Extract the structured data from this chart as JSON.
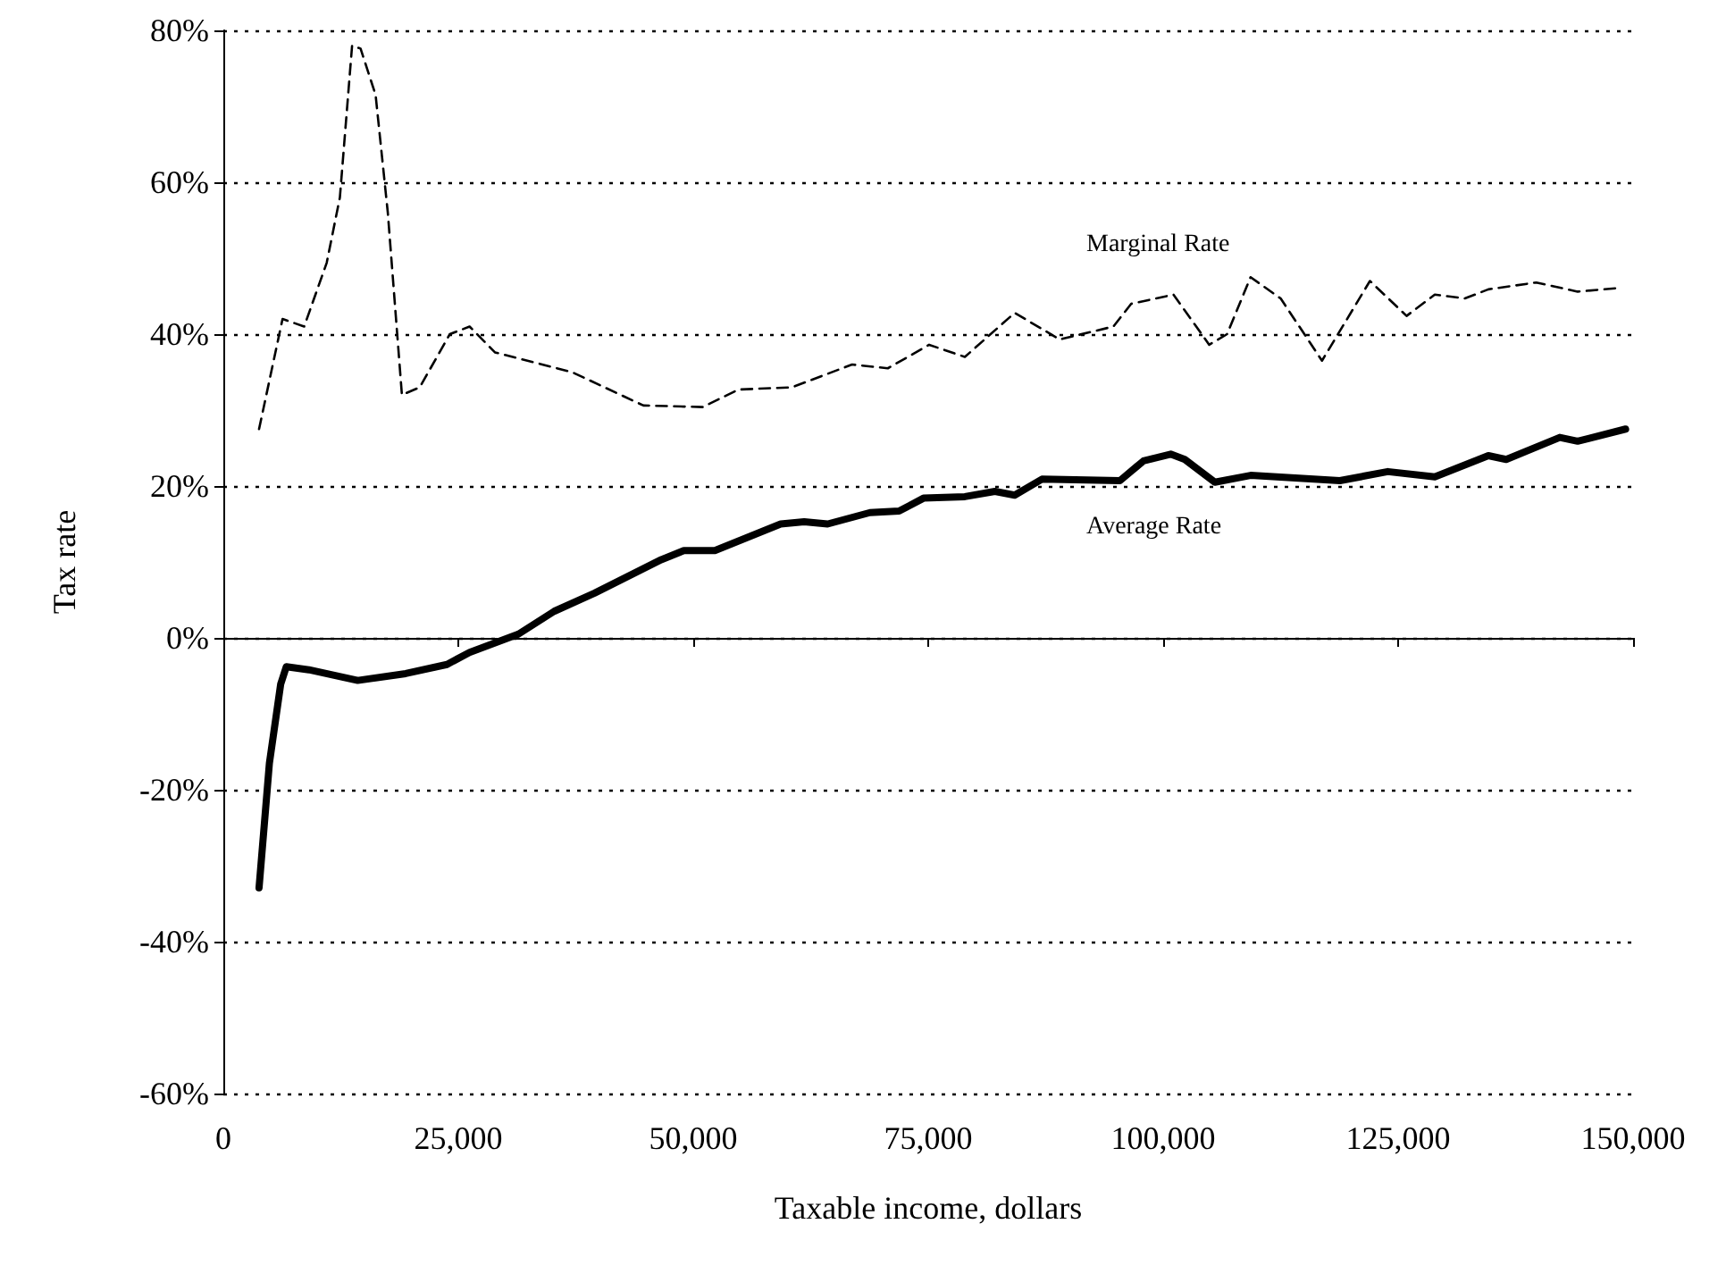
{
  "chart_data": {
    "type": "line",
    "xlabel": "Taxable income, dollars",
    "ylabel": "Tax rate",
    "xlim": [
      0,
      150000
    ],
    "xticks": [
      0,
      {
        "value": 25000,
        "label": "25,000"
      },
      {
        "value": 50000,
        "label": "50,000"
      },
      {
        "value": 75000,
        "label": "75,000"
      },
      {
        "value": 100000,
        "label": "100,000"
      },
      {
        "value": 125000,
        "label": "125,000"
      },
      {
        "value": 150000,
        "label": "150,000"
      }
    ],
    "ylim": [
      -60,
      80
    ],
    "yticks": [
      {
        "value": -60,
        "label": "-60%"
      },
      {
        "value": -40,
        "label": "-40%"
      },
      {
        "value": -20,
        "label": "-20%"
      },
      {
        "value": 0,
        "label": "0%"
      },
      {
        "value": 20,
        "label": "20%"
      },
      {
        "value": 40,
        "label": "40%"
      },
      {
        "value": 60,
        "label": "60%"
      },
      {
        "value": 80,
        "label": "80%"
      }
    ],
    "grid": "y",
    "legend": false,
    "marker": "none",
    "series": [
      {
        "name": "Marginal Rate",
        "color": "#000000",
        "line_style": "dashed",
        "x": [
          3800,
          6300,
          8600,
          11000,
          12400,
          13700,
          14600,
          16200,
          17500,
          19000,
          20900,
          24100,
          26200,
          28900,
          37100,
          44700,
          51000,
          54800,
          60500,
          66900,
          70700,
          75100,
          78900,
          84200,
          89000,
          94700,
          96600,
          101100,
          104900,
          106800,
          109300,
          112500,
          116900,
          122000,
          125900,
          128900,
          132100,
          134600,
          139700,
          144100,
          148700
        ],
        "values": [
          27.5,
          42,
          41,
          49.4,
          58,
          78,
          77.6,
          71.5,
          56,
          32,
          33,
          40,
          41,
          37.6,
          35,
          30.6,
          30.4,
          32.7,
          33,
          36,
          35.5,
          38.6,
          37,
          42.8,
          39.3,
          41,
          44,
          45.2,
          38.6,
          40,
          47.5,
          44.7,
          36.5,
          47,
          42.4,
          45.2,
          44.7,
          45.9,
          46.8,
          45.6,
          46.1
        ]
      },
      {
        "name": "Average Rate",
        "color": "#000000",
        "line_style": "solid",
        "x": [
          3800,
          4900,
          6100,
          6700,
          9100,
          14300,
          19400,
          23800,
          26200,
          31400,
          35200,
          39500,
          46600,
          49000,
          52300,
          59300,
          61800,
          64300,
          68800,
          71900,
          74500,
          78900,
          82100,
          84200,
          87100,
          95400,
          97900,
          100800,
          102300,
          105500,
          109300,
          118800,
          123900,
          128900,
          134600,
          136500,
          142200,
          144100,
          149200
        ],
        "values": [
          -32.9,
          -16.5,
          -6.1,
          -3.8,
          -4.2,
          -5.6,
          -4.7,
          -3.5,
          -1.9,
          0.5,
          3.5,
          5.9,
          10.3,
          11.5,
          11.5,
          15,
          15.3,
          15,
          16.5,
          16.7,
          18.4,
          18.6,
          19.3,
          18.8,
          20.9,
          20.7,
          23.3,
          24.2,
          23.5,
          20.5,
          21.4,
          20.7,
          21.9,
          21.2,
          24,
          23.5,
          26.4,
          25.9,
          27.5
        ]
      }
    ]
  }
}
